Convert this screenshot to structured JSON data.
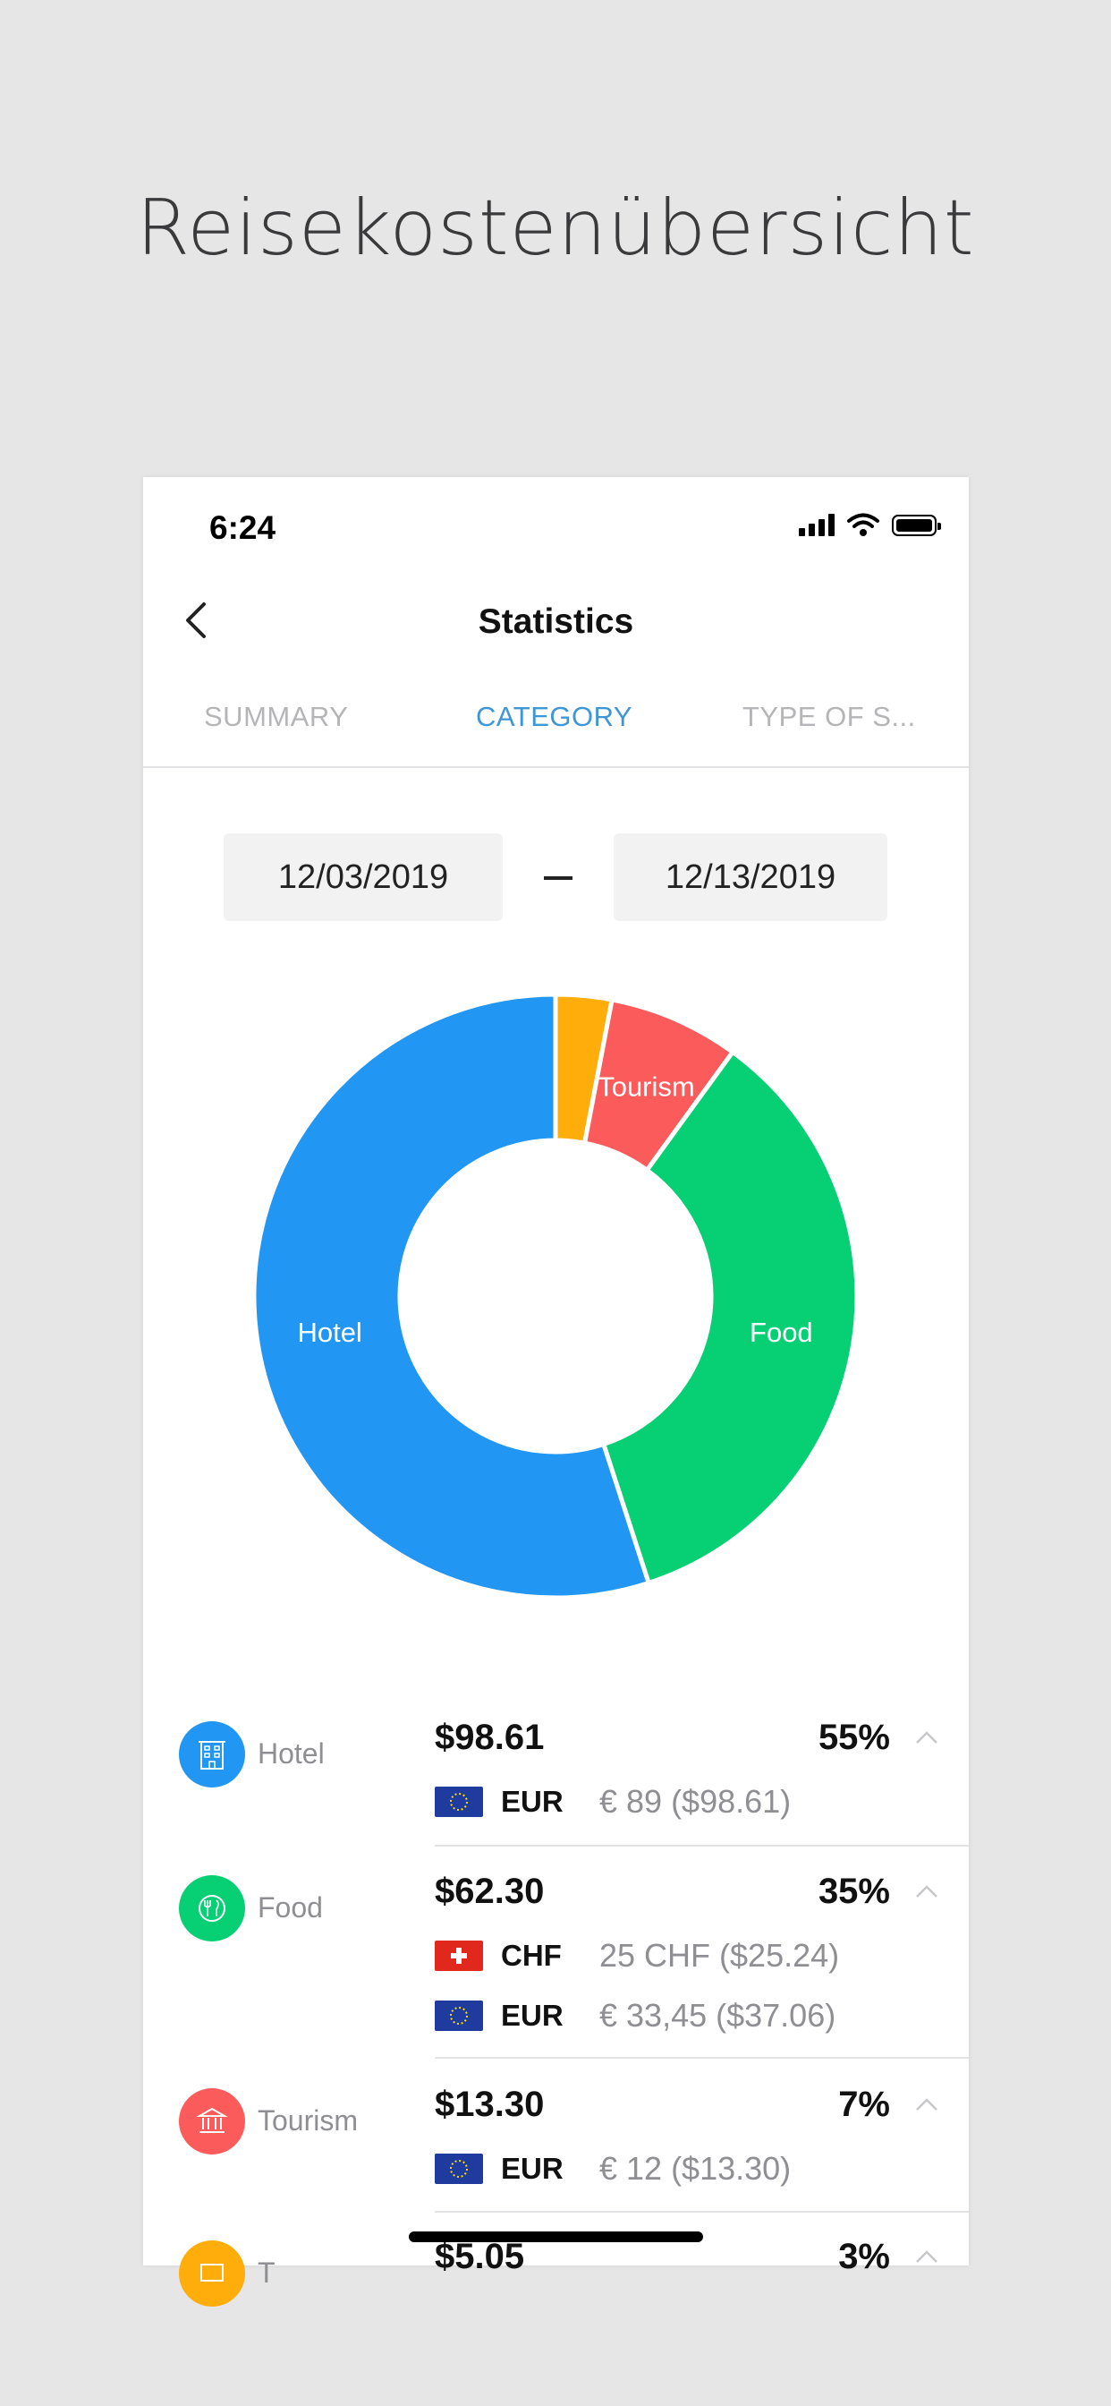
{
  "headline": "Reisekostenübersicht",
  "status_bar": {
    "time": "6:24"
  },
  "nav": {
    "title": "Statistics",
    "back_icon": "chevron-left-icon"
  },
  "tabs": [
    {
      "label": "SUMMARY",
      "active": false
    },
    {
      "label": "CATEGORY",
      "active": true
    },
    {
      "label": "TYPE OF S...",
      "active": false
    }
  ],
  "date_range": {
    "start": "12/03/2019",
    "end": "12/13/2019"
  },
  "colors": {
    "hotel": "#2196f3",
    "food": "#07cf73",
    "tourism": "#fb5b5a",
    "other": "#ffad0a",
    "accent": "#3d97d6"
  },
  "chart_data": {
    "type": "pie",
    "donut": true,
    "slices": [
      {
        "label": "",
        "value": 3,
        "color": "#ffad0a"
      },
      {
        "label": "Tourism",
        "value": 7,
        "color": "#fb5b5a"
      },
      {
        "label": "Food",
        "value": 35,
        "color": "#07cf73"
      },
      {
        "label": "Hotel",
        "value": 55,
        "color": "#2196f3"
      }
    ]
  },
  "categories": [
    {
      "name": "Hotel",
      "icon": "hotel-building-icon",
      "color": "#2196f3",
      "amount": "$98.61",
      "percent": "55%",
      "currencies": [
        {
          "flag": "eu-flag-icon",
          "code": "EUR",
          "value": "€ 89 ($98.61)"
        }
      ]
    },
    {
      "name": "Food",
      "icon": "fork-knife-icon",
      "color": "#07cf73",
      "amount": "$62.30",
      "percent": "35%",
      "currencies": [
        {
          "flag": "swiss-flag-icon",
          "code": "CHF",
          "value": "25 CHF ($25.24)"
        },
        {
          "flag": "eu-flag-icon",
          "code": "EUR",
          "value": "€ 33,45 ($37.06)"
        }
      ]
    },
    {
      "name": "Tourism",
      "icon": "museum-icon",
      "color": "#fb5b5a",
      "amount": "$13.30",
      "percent": "7%",
      "currencies": [
        {
          "flag": "eu-flag-icon",
          "code": "EUR",
          "value": "€ 12 ($13.30)"
        }
      ]
    },
    {
      "name": "T",
      "icon": "ticket-icon",
      "color": "#ffad0a",
      "amount": "$5.05",
      "percent": "3%",
      "currencies": []
    }
  ]
}
